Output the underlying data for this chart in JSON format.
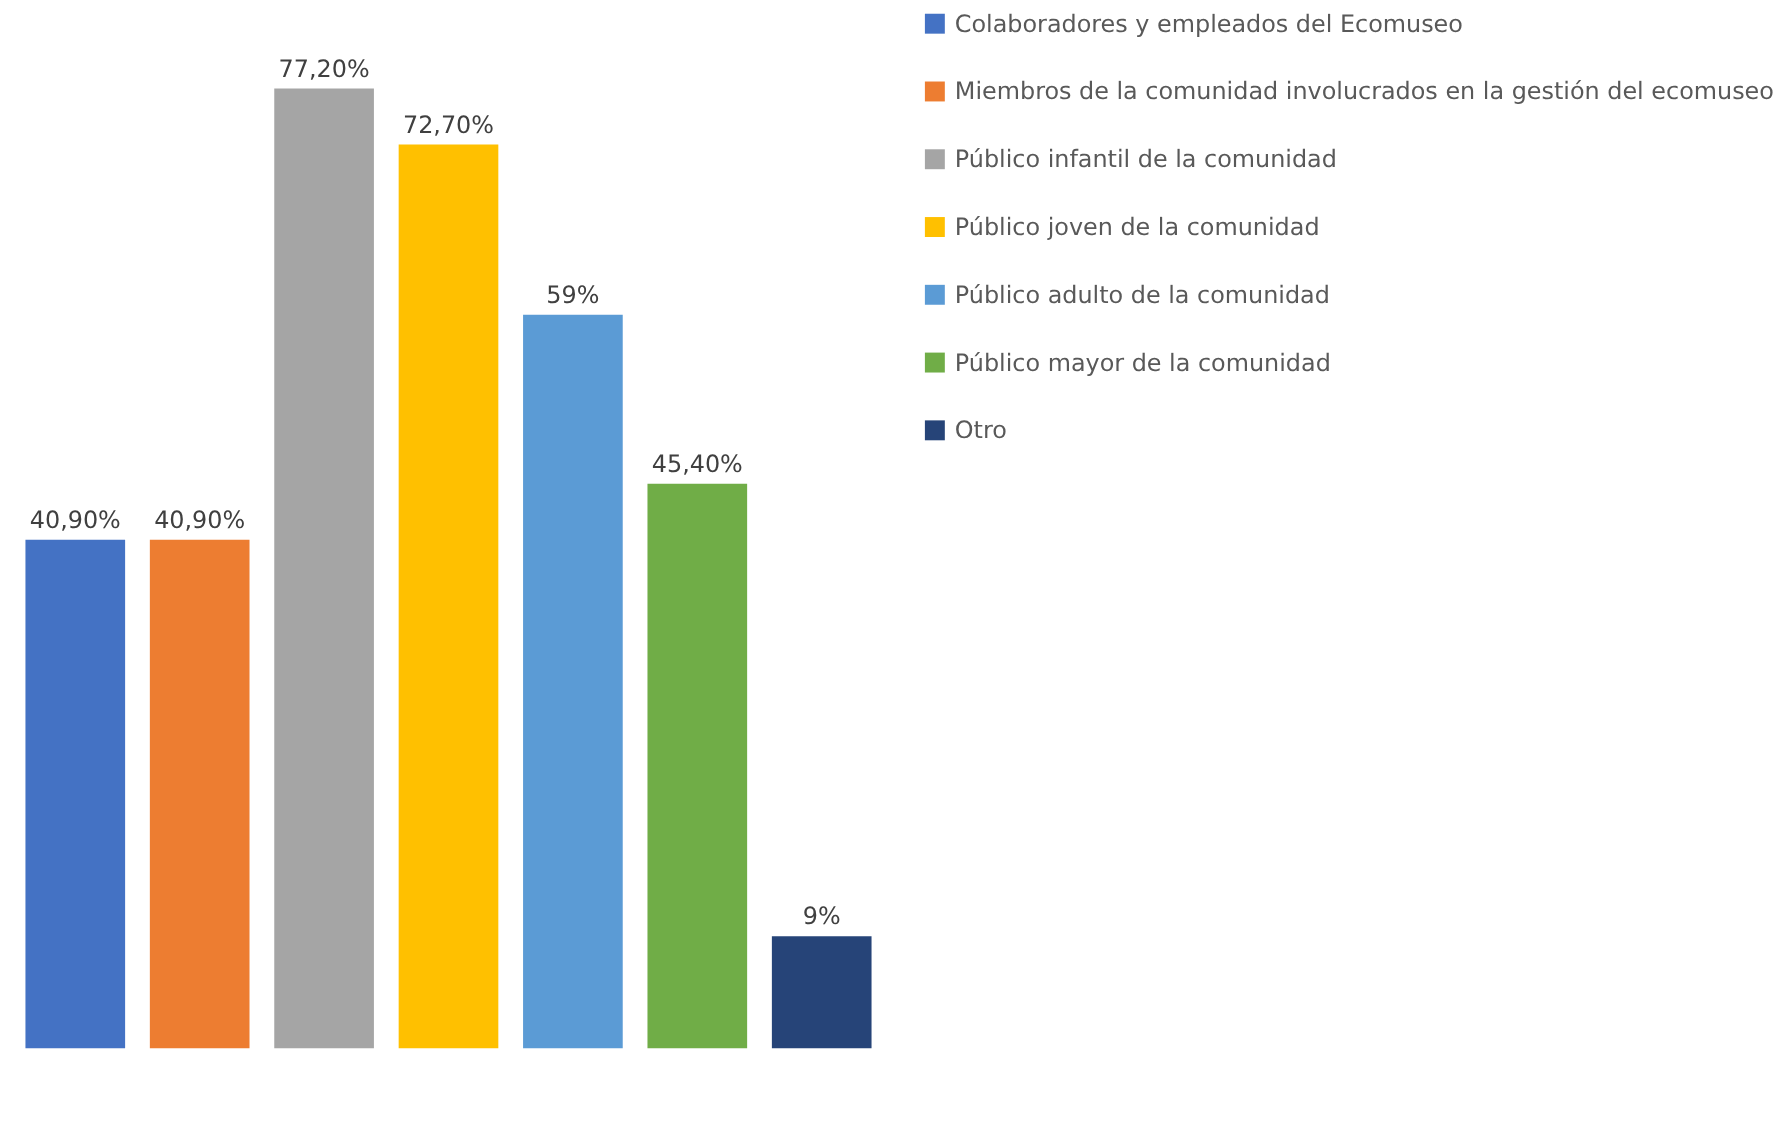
{
  "chart_data": {
    "type": "bar",
    "stacked": true,
    "categories": [
      null,
      null,
      null,
      null,
      null,
      null,
      null
    ],
    "legend": "right",
    "series": [
      {
        "name": "Colaboradores y empleados del Ecomuseo",
        "color": "#4472c4",
        "values": [
          40.9,
          null,
          null,
          null,
          null,
          null,
          null
        ],
        "value_labels": [
          "40,90%",
          null,
          null,
          null,
          null,
          null,
          null
        ]
      },
      {
        "name": "Miembros de la comunidad involucrados en la gestión del ecomuseo",
        "color": "#ed7d31",
        "values": [
          null,
          40.9,
          null,
          null,
          null,
          null,
          null
        ],
        "value_labels": [
          null,
          "40,90%",
          null,
          null,
          null,
          null,
          null
        ]
      },
      {
        "name": "Público infantil de la comunidad",
        "color": "#a5a5a5",
        "values": [
          null,
          null,
          77.2,
          null,
          null,
          null,
          null
        ],
        "value_labels": [
          null,
          null,
          "77,20%",
          null,
          null,
          null,
          null
        ]
      },
      {
        "name": "Público joven de la comunidad",
        "color": "#ffc000",
        "values": [
          null,
          null,
          null,
          72.7,
          null,
          null,
          null
        ],
        "value_labels": [
          null,
          null,
          null,
          "72,70%",
          null,
          null,
          null
        ]
      },
      {
        "name": "Público adulto de la comunidad",
        "color": "#5b9bd5",
        "values": [
          null,
          null,
          null,
          null,
          59,
          null,
          null
        ],
        "value_labels": [
          null,
          null,
          null,
          null,
          "59%",
          null,
          null
        ]
      },
      {
        "name": "Público mayor de la comunidad",
        "color": "#70ad47",
        "values": [
          null,
          null,
          null,
          null,
          null,
          45.4,
          null
        ],
        "value_labels": [
          null,
          null,
          null,
          null,
          null,
          "45,40%",
          null
        ]
      },
      {
        "name": "Otro",
        "color": "#264478",
        "values": [
          null,
          null,
          null,
          null,
          null,
          null,
          9
        ],
        "value_labels": [
          null,
          null,
          null,
          null,
          null,
          null,
          "9%"
        ]
      }
    ]
  }
}
